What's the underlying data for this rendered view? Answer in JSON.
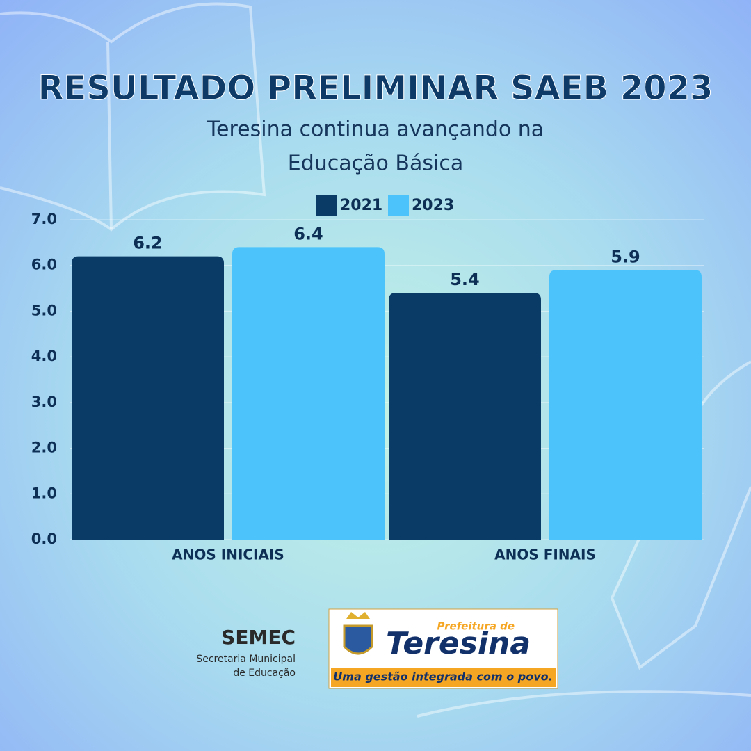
{
  "chart_data": {
    "type": "bar",
    "title": "RESULTADO PRELIMINAR SAEB 2023",
    "subtitle": [
      "Teresina continua avançando na",
      "Educação Básica"
    ],
    "categories": [
      "ANOS INICIAIS",
      "ANOS FINAIS"
    ],
    "series": [
      {
        "name": "2021",
        "color": "#0a3a66",
        "values": [
          6.2,
          5.4
        ]
      },
      {
        "name": "2023",
        "color": "#4cc4fb",
        "values": [
          6.4,
          5.9
        ]
      }
    ],
    "ylim": [
      0,
      7
    ],
    "yticks": [
      {
        "value": 0,
        "label": "0.0"
      },
      {
        "value": 1,
        "label": "1.0"
      },
      {
        "value": 2,
        "label": "2.0"
      },
      {
        "value": 3,
        "label": "3.0"
      },
      {
        "value": 4,
        "label": "4.0"
      },
      {
        "value": 5,
        "label": "5.0"
      },
      {
        "value": 6,
        "label": "6.0"
      },
      {
        "value": 7,
        "label": "7.0"
      }
    ],
    "grid": true,
    "legend": "top"
  },
  "footer": {
    "semec": "SEMEC",
    "semec_caption": [
      "Secretaria Municipal",
      "de Educação"
    ],
    "logo_top": "Prefeitura de",
    "logo_name": "Teresina",
    "slogan": "Uma gestão integrada com o povo."
  }
}
